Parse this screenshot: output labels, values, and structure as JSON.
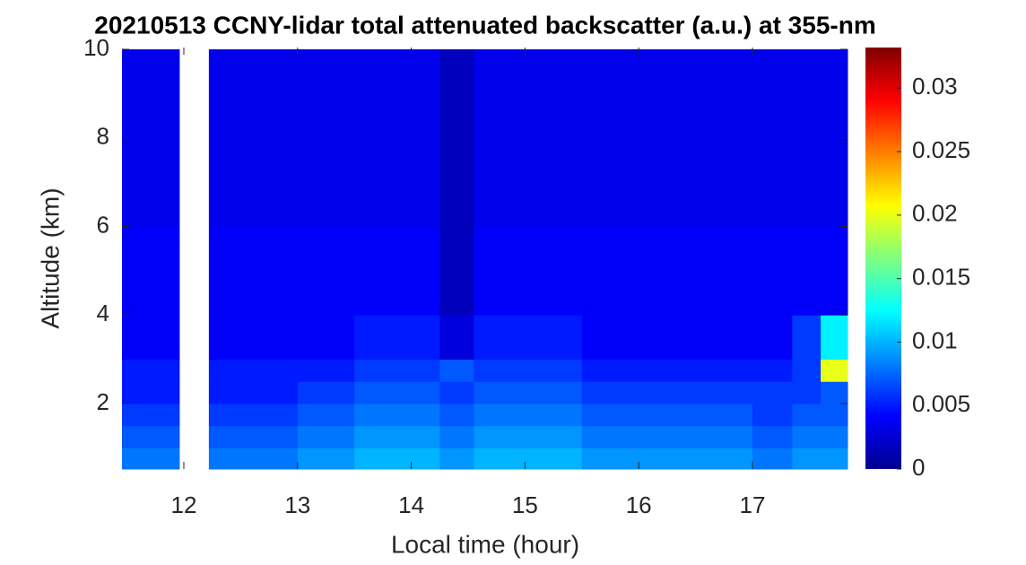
{
  "chart_data": {
    "type": "heatmap",
    "title": "20210513 CCNY-lidar total attenuated backscatter (a.u.) at 355-nm",
    "x_label": "Local time (hour)",
    "y_label": "Altitude (km)",
    "colormap": "jet",
    "x_edges": [
      11.45,
      11.96,
      12.22,
      12.6,
      13,
      13.5,
      14,
      14.25,
      14.55,
      15,
      15.5,
      16,
      16.5,
      17,
      17.35,
      17.6,
      17.84
    ],
    "y_edges": [
      0.5,
      1,
      1.5,
      2,
      2.5,
      3,
      4,
      6,
      8,
      10
    ],
    "z": [
      [
        0.008,
        null,
        0.008,
        0.008,
        0.009,
        0.01,
        0.01,
        0.009,
        0.01,
        0.01,
        0.009,
        0.009,
        0.009,
        0.008,
        0.009,
        0.009
      ],
      [
        0.007,
        null,
        0.007,
        0.007,
        0.008,
        0.009,
        0.009,
        0.008,
        0.009,
        0.009,
        0.008,
        0.008,
        0.008,
        0.007,
        0.008,
        0.008
      ],
      [
        0.006,
        null,
        0.006,
        0.006,
        0.007,
        0.008,
        0.008,
        0.007,
        0.008,
        0.008,
        0.007,
        0.007,
        0.007,
        0.006,
        0.007,
        0.007
      ],
      [
        0.005,
        null,
        0.005,
        0.005,
        0.006,
        0.007,
        0.007,
        0.006,
        0.007,
        0.007,
        0.006,
        0.006,
        0.006,
        0.006,
        0.006,
        0.007
      ],
      [
        0.005,
        null,
        0.005,
        0.005,
        0.005,
        0.006,
        0.006,
        0.007,
        0.006,
        0.006,
        0.005,
        0.005,
        0.005,
        0.005,
        0.006,
        0.02
      ],
      [
        0.004,
        null,
        0.004,
        0.004,
        0.004,
        0.005,
        0.005,
        0.003,
        0.005,
        0.005,
        0.004,
        0.004,
        0.004,
        0.004,
        0.006,
        0.012
      ],
      [
        0.004,
        null,
        0.004,
        0.004,
        0.004,
        0.004,
        0.004,
        0.002,
        0.004,
        0.004,
        0.004,
        0.004,
        0.004,
        0.004,
        0.004,
        0.004
      ],
      [
        0.0035,
        null,
        0.0035,
        0.0035,
        0.0035,
        0.0035,
        0.0035,
        0.002,
        0.0035,
        0.0035,
        0.0035,
        0.0035,
        0.0035,
        0.0035,
        0.0035,
        0.0035
      ],
      [
        0.0035,
        null,
        0.0035,
        0.0035,
        0.0035,
        0.0035,
        0.0035,
        0.002,
        0.0035,
        0.0035,
        0.0035,
        0.0035,
        0.0035,
        0.0035,
        0.0035,
        0.0035
      ]
    ],
    "xlim": [
      11.456,
      17.836
    ],
    "xticks": [
      12,
      13,
      14,
      15,
      16,
      17
    ],
    "ylim": [
      0.52,
      10.04
    ],
    "yticks": [
      2,
      4,
      6,
      8,
      10
    ],
    "clim": [
      0,
      0.0332
    ],
    "cticks": [
      0,
      0.005,
      0.01,
      0.015,
      0.02,
      0.025,
      0.03
    ]
  }
}
